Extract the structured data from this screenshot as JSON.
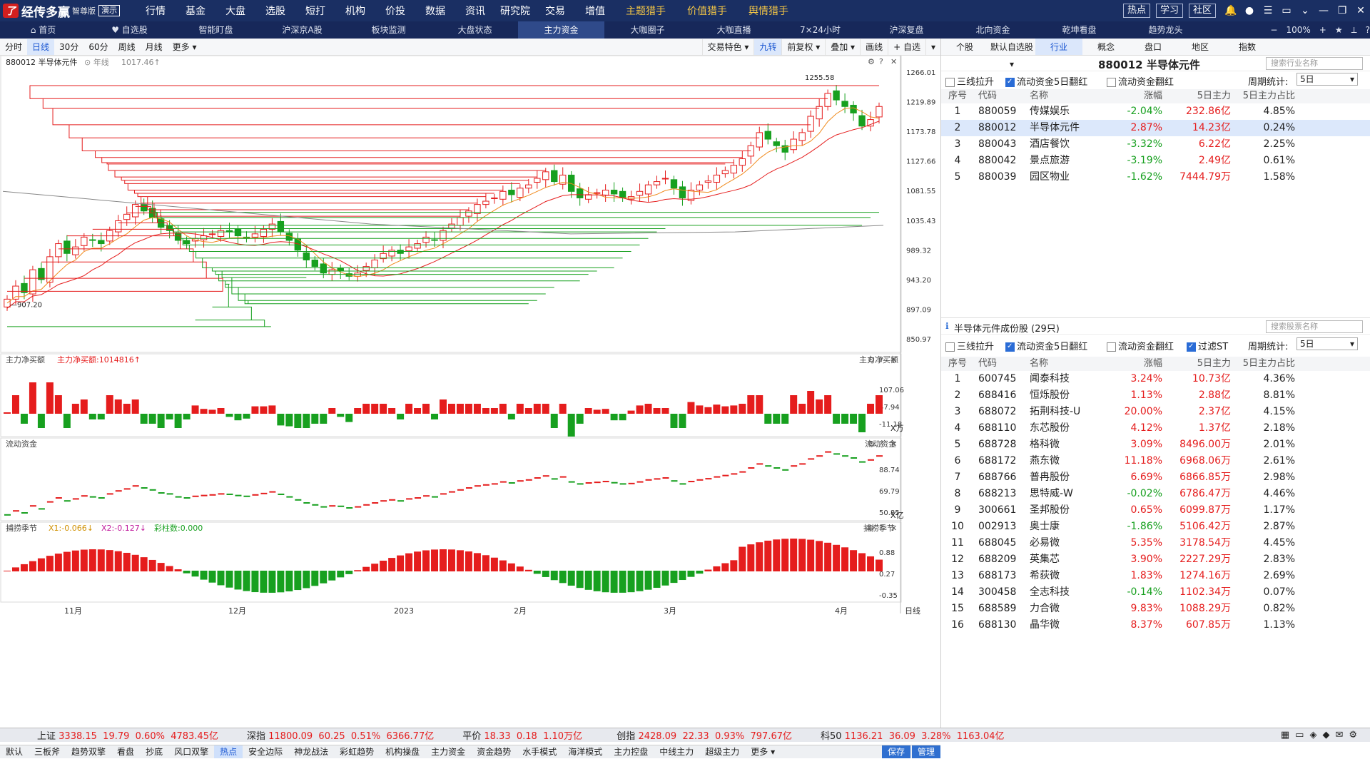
{
  "app": {
    "logo_char": "了",
    "name": "经传多赢",
    "edition": "智尊版",
    "demo": "演示"
  },
  "top_menu": [
    "行情",
    "基金",
    "大盘",
    "选股",
    "短打",
    "机构",
    "价投",
    "数据",
    "资讯",
    "研究院",
    "交易",
    "增值"
  ],
  "top_menu_hl": [
    "主题猎手",
    "价值猎手",
    "舆情猎手"
  ],
  "top_right": {
    "hot": "热点",
    "learn": "学习",
    "community": "社区"
  },
  "nav": [
    "首页",
    "自选股",
    "智能盯盘",
    "沪深京A股",
    "板块监测",
    "大盘状态",
    "主力资金",
    "大咖圈子",
    "大咖直播",
    "7×24小时",
    "沪深复盘",
    "北向资金",
    "乾坤看盘",
    "趋势龙头"
  ],
  "nav_right": {
    "zoom": "100%"
  },
  "periods": [
    "分时",
    "日线",
    "30分",
    "60分",
    "周线",
    "月线",
    "更多"
  ],
  "period_right": [
    "交易特色",
    "九转",
    "前复权",
    "叠加",
    "画线",
    "自选"
  ],
  "kline": {
    "title": "880012 半导体元件",
    "sub": "年线",
    "year_line": "1017.46",
    "hi_label": "1255.58",
    "lo_label": "907.20",
    "yticks": [
      "1266.01",
      "1219.89",
      "1173.78",
      "1127.66",
      "1081.55",
      "1035.43",
      "989.32",
      "943.20",
      "897.09",
      "850.97"
    ]
  },
  "panel_net": {
    "title": "主力净买额",
    "value_label": "主力净买额:1014816",
    "right": "主力净买额",
    "yticks": [
      "107.06",
      "47.94",
      "-11.18"
    ],
    "unit": "X万"
  },
  "panel_flow": {
    "title": "流动资金",
    "right": "流动资金",
    "yticks": [
      "88.74",
      "69.79",
      "50.85"
    ],
    "unit": "X亿"
  },
  "panel_season": {
    "title": "捕捞季节",
    "x1": "X1:-0.066",
    "x2": "X2:-0.127",
    "rainbow": "彩柱数:0.000",
    "right": "捕捞季节",
    "yticks": [
      "0.88",
      "0.27",
      "-0.35"
    ]
  },
  "xaxis": [
    "11月",
    "12月",
    "2023",
    "2月",
    "3月",
    "4月"
  ],
  "x_right": "日线",
  "bottom_tabs": [
    "默认",
    "三板斧",
    "趋势双擎",
    "看盘",
    "抄底",
    "风口双擎",
    "热点",
    "安全边际",
    "神龙战法",
    "彩虹趋势",
    "机构操盘",
    "主力资金",
    "资金趋势",
    "水手模式",
    "海洋模式",
    "主力控盘",
    "中线主力",
    "超级主力",
    "更多"
  ],
  "bottom_right": [
    "保存",
    "管理"
  ],
  "right_tabs": [
    "个股",
    "默认自选股",
    "行业",
    "概念",
    "盘口",
    "地区",
    "指数"
  ],
  "sector_header": {
    "title": "880012 半导体元件",
    "search": "搜索行业名称"
  },
  "filters": {
    "a": "三线拉升",
    "b": "流动资金5日翻红",
    "c": "流动资金翻红",
    "d": "过滤ST",
    "period_label": "周期统计:",
    "period": "5日"
  },
  "cols": [
    "序号",
    "代码",
    "名称",
    "涨幅",
    "5日主力",
    "5日主力占比"
  ],
  "sector_rows": [
    [
      "1",
      "880059",
      "传媒娱乐",
      "-2.04%",
      "232.86亿",
      "4.85%"
    ],
    [
      "2",
      "880012",
      "半导体元件",
      "2.87%",
      "14.23亿",
      "0.24%"
    ],
    [
      "3",
      "880043",
      "酒店餐饮",
      "-3.32%",
      "6.22亿",
      "2.25%"
    ],
    [
      "4",
      "880042",
      "景点旅游",
      "-3.19%",
      "2.49亿",
      "0.61%"
    ],
    [
      "5",
      "880039",
      "园区物业",
      "-1.62%",
      "7444.79万",
      "1.58%"
    ]
  ],
  "stocks_header": {
    "title": "半导体元件成份股 (29只)",
    "search": "搜索股票名称"
  },
  "stock_rows": [
    [
      "1",
      "600745",
      "闻泰科技",
      "3.24%",
      "10.73亿",
      "4.36%"
    ],
    [
      "2",
      "688416",
      "恒烁股份",
      "1.13%",
      "2.88亿",
      "8.81%"
    ],
    [
      "3",
      "688072",
      "拓荆科技-U",
      "20.00%",
      "2.37亿",
      "4.15%"
    ],
    [
      "4",
      "688110",
      "东芯股份",
      "4.12%",
      "1.37亿",
      "2.18%"
    ],
    [
      "5",
      "688728",
      "格科微",
      "3.09%",
      "8496.00万",
      "2.01%"
    ],
    [
      "6",
      "688172",
      "燕东微",
      "11.18%",
      "6968.06万",
      "2.61%"
    ],
    [
      "7",
      "688766",
      "普冉股份",
      "6.69%",
      "6866.85万",
      "2.98%"
    ],
    [
      "8",
      "688213",
      "思特威-W",
      "-0.02%",
      "6786.47万",
      "4.46%"
    ],
    [
      "9",
      "300661",
      "圣邦股份",
      "0.65%",
      "6099.87万",
      "1.17%"
    ],
    [
      "10",
      "002913",
      "奥士康",
      "-1.86%",
      "5106.42万",
      "2.87%"
    ],
    [
      "11",
      "688045",
      "必易微",
      "5.35%",
      "3178.54万",
      "4.45%"
    ],
    [
      "12",
      "688209",
      "英集芯",
      "3.90%",
      "2227.29万",
      "2.83%"
    ],
    [
      "13",
      "688173",
      "希荻微",
      "1.83%",
      "1274.16万",
      "2.69%"
    ],
    [
      "14",
      "300458",
      "全志科技",
      "-0.14%",
      "1102.34万",
      "0.07%"
    ],
    [
      "15",
      "688589",
      "力合微",
      "9.83%",
      "1088.29万",
      "0.82%"
    ],
    [
      "16",
      "688130",
      "晶华微",
      "8.37%",
      "607.85万",
      "1.13%"
    ]
  ],
  "status": [
    {
      "name": "上证",
      "v": "3338.15",
      "c": "19.79",
      "p": "0.60%",
      "a": "4783.45亿",
      "color": "#e51d1d"
    },
    {
      "name": "深指",
      "v": "11800.09",
      "c": "60.25",
      "p": "0.51%",
      "a": "6366.77亿",
      "color": "#e51d1d"
    },
    {
      "name": "平价",
      "v": "18.33",
      "c": "0.18",
      "p": "1.10万亿",
      "a": "",
      "color": "#e51d1d"
    },
    {
      "name": "创指",
      "v": "2428.09",
      "c": "22.33",
      "p": "0.93%",
      "a": "797.67亿",
      "color": "#e51d1d"
    },
    {
      "name": "科50",
      "v": "1136.21",
      "c": "36.09",
      "p": "3.28%",
      "a": "1163.04亿",
      "color": "#e51d1d"
    }
  ],
  "colors": {
    "up": "#e51d1d",
    "down": "#17a01f"
  },
  "chart_data": {
    "type": "candlestick",
    "series_name": "880012 半导体元件",
    "ylim": [
      850.97,
      1266.01
    ],
    "closes": [
      915,
      935,
      925,
      960,
      945,
      980,
      1000,
      985,
      995,
      1010,
      1005,
      1000,
      1020,
      1035,
      1045,
      1060,
      1050,
      1040,
      1025,
      1020,
      1005,
      1000,
      1008,
      1012,
      1015,
      1020,
      1018,
      1012,
      1008,
      1015,
      1022,
      1030,
      1018,
      1005,
      990,
      975,
      965,
      955,
      960,
      958,
      950,
      955,
      965,
      975,
      985,
      990,
      985,
      995,
      1000,
      1010,
      1005,
      1020,
      1030,
      1040,
      1050,
      1060,
      1065,
      1070,
      1080,
      1075,
      1085,
      1090,
      1100,
      1110,
      1095,
      1105,
      1080,
      1070,
      1075,
      1078,
      1082,
      1076,
      1070,
      1072,
      1080,
      1090,
      1095,
      1100,
      1085,
      1070,
      1082,
      1090,
      1096,
      1105,
      1112,
      1120,
      1130,
      1150,
      1170,
      1160,
      1150,
      1140,
      1160,
      1170,
      1195,
      1210,
      1230,
      1220,
      1210,
      1200,
      1180,
      1190,
      1210
    ]
  }
}
